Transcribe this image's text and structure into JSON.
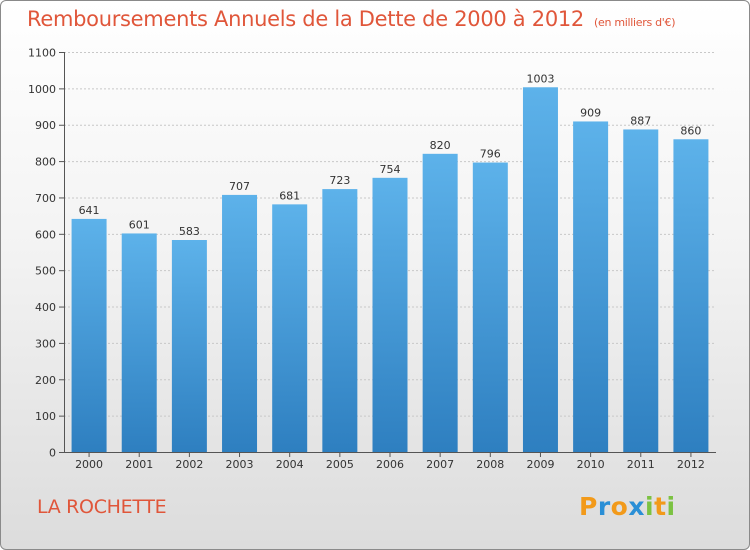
{
  "title": "Remboursements Annuels de la Dette de 2000 à 2012",
  "unit_label": "(en milliers d'€)",
  "commune": "LA ROCHETTE",
  "brand": {
    "letters": [
      "P",
      "r",
      "o",
      "x",
      "i",
      "t",
      "i"
    ],
    "colors": [
      "#f29a1a",
      "#2a8fd6",
      "#f29a1a",
      "#2a8fd6",
      "#7cc242",
      "#f29a1a",
      "#7cc242"
    ]
  },
  "colors": {
    "bar_top": "#5db2ea",
    "bar_bottom": "#2e7fc0",
    "title": "#e0563a"
  },
  "chart_data": {
    "type": "bar",
    "categories": [
      "2000",
      "2001",
      "2002",
      "2003",
      "2004",
      "2005",
      "2006",
      "2007",
      "2008",
      "2009",
      "2010",
      "2011",
      "2012"
    ],
    "values": [
      641,
      601,
      583,
      707,
      681,
      723,
      754,
      820,
      796,
      1003,
      909,
      887,
      860
    ],
    "ylim": [
      0,
      1100
    ],
    "yticks": [
      0,
      100,
      200,
      300,
      400,
      500,
      600,
      700,
      800,
      900,
      1000,
      1100
    ],
    "grid": true,
    "data_labels": true
  }
}
